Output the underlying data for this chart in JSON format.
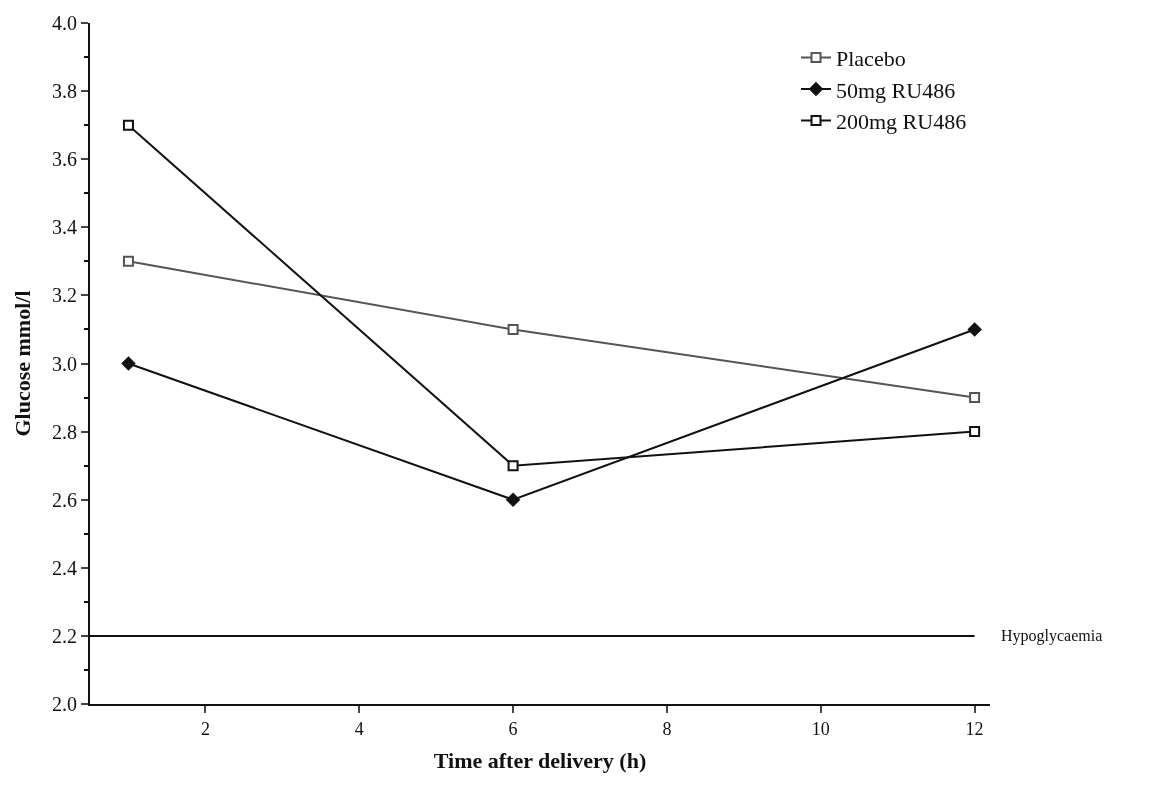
{
  "chart_data": {
    "type": "line",
    "xlabel": "Time after delivery (h)",
    "ylabel": "Glucose mmol/l",
    "x": [
      1,
      6,
      12
    ],
    "series": [
      {
        "name": "Placebo",
        "color": "#555555",
        "marker": "square",
        "values": [
          3.3,
          3.1,
          2.9
        ]
      },
      {
        "name": "50mg RU486",
        "color": "#111111",
        "marker": "diamond",
        "values": [
          3.0,
          2.6,
          3.1
        ]
      },
      {
        "name": "200mg RU486",
        "color": "#111111",
        "marker": "square",
        "values": [
          3.7,
          2.7,
          2.8
        ]
      }
    ],
    "xlim": [
      0.5,
      12.2
    ],
    "xticks": [
      2,
      4,
      6,
      8,
      10,
      12
    ],
    "ylim": [
      2.0,
      4.0
    ],
    "yticks": [
      {
        "value": 2.0,
        "label": "2.0"
      },
      2.2,
      2.4,
      2.6,
      2.8,
      {
        "value": 3.0,
        "label": "3.0"
      },
      3.2,
      3.4,
      3.6,
      3.8,
      {
        "value": 4.0,
        "label": "4.0"
      }
    ],
    "ref_lines": [
      {
        "axis": "y",
        "value": 2.2,
        "label": "Hypoglycaemia",
        "color": "#111111"
      }
    ],
    "legend": "top right",
    "line_style": "solid"
  }
}
